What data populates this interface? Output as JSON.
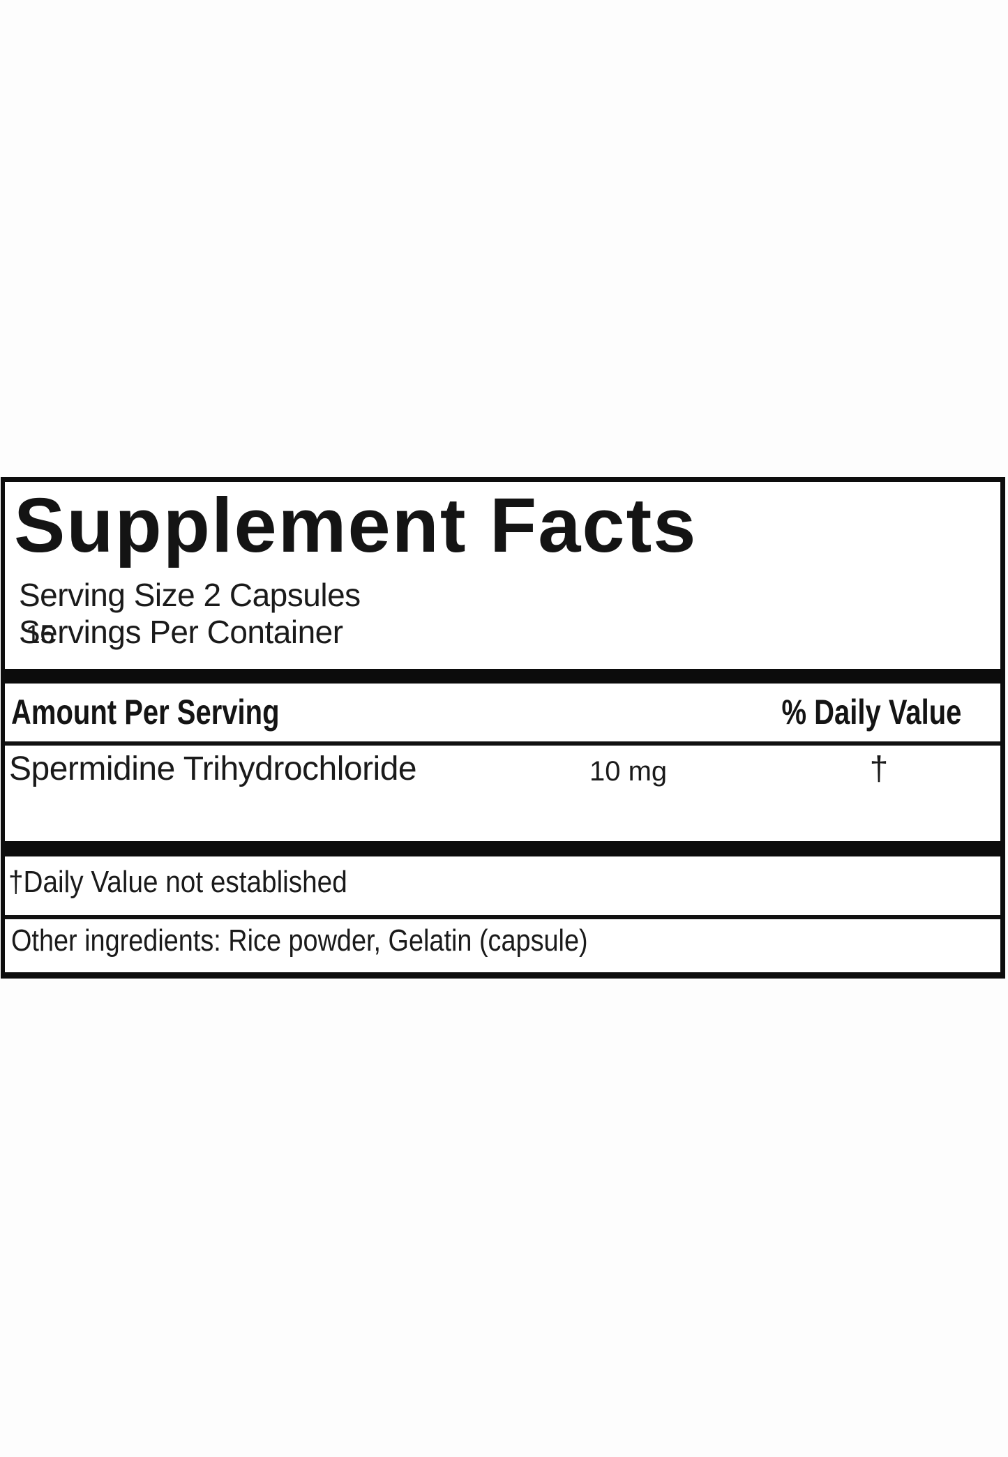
{
  "label": {
    "title": "Supplement Facts",
    "serving": {
      "size_line": "Serving Size 2 Capsules",
      "per_container_label": "Servings Per Container",
      "per_container_value": "15"
    },
    "header": {
      "amount": "Amount Per Serving",
      "daily_value": "% Daily Value"
    },
    "ingredients": [
      {
        "name": "Spermidine Trihydrochloride",
        "amount": "10 mg",
        "daily_value": "†"
      }
    ],
    "footnotes": {
      "daily_value_note": "†Daily Value not established",
      "other_ingredients": "Other ingredients: Rice powder, Gelatin (capsule)"
    },
    "colors": {
      "text": "#1a1a1a",
      "rule": "#0d0d0d",
      "background": "#ffffff"
    }
  }
}
